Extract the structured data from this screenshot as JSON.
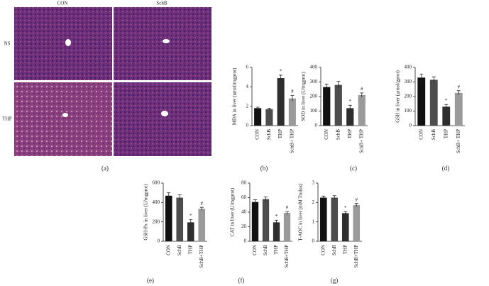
{
  "histology": {
    "columns": [
      "CON",
      "SchB"
    ],
    "rows": [
      "NS",
      "THP"
    ],
    "label": "(a)"
  },
  "chart_data": [
    {
      "type": "bar",
      "panel": "(b)",
      "ylabel": "MDA in liver (nmol/mgprot)",
      "categories": [
        "CON",
        "SchB",
        "THP",
        "SchB+ THP"
      ],
      "values": [
        1.8,
        1.7,
        4.9,
        2.8
      ],
      "errors": [
        0.1,
        0.1,
        0.3,
        0.3
      ],
      "markers": [
        null,
        null,
        "*",
        "#"
      ],
      "colors": [
        "#111111",
        "#4d4d4d",
        "#2e2e2e",
        "#9a9a9a"
      ],
      "ylim": [
        0,
        6
      ],
      "yticks": [
        0,
        2,
        4,
        6
      ]
    },
    {
      "type": "bar",
      "panel": "(c)",
      "ylabel": "SOD in liver (U/mgprot)",
      "categories": [
        "CON",
        "SchB",
        "THP",
        "SchB+ THP"
      ],
      "values": [
        265,
        280,
        120,
        210
      ],
      "errors": [
        20,
        25,
        20,
        15
      ],
      "markers": [
        null,
        null,
        "*",
        "#"
      ],
      "colors": [
        "#111111",
        "#4d4d4d",
        "#2e2e2e",
        "#9a9a9a"
      ],
      "ylim": [
        0,
        400
      ],
      "yticks": [
        0,
        100,
        200,
        300,
        400
      ]
    },
    {
      "type": "bar",
      "panel": "(d)",
      "ylabel": "GSH in liver (μmol/gprot)",
      "categories": [
        "CON",
        "SchB",
        "THP",
        "SchB+ THP"
      ],
      "values": [
        330,
        315,
        130,
        225
      ],
      "errors": [
        25,
        20,
        15,
        15
      ],
      "markers": [
        null,
        null,
        "*",
        "#"
      ],
      "colors": [
        "#111111",
        "#4d4d4d",
        "#2e2e2e",
        "#9a9a9a"
      ],
      "ylim": [
        0,
        400
      ],
      "yticks": [
        0,
        100,
        200,
        300,
        400
      ]
    },
    {
      "type": "bar",
      "panel": "(e)",
      "ylabel": "GSH-Px in liver (U/mgprot)",
      "categories": [
        "CON",
        "SchB",
        "THP",
        "SchB+THP"
      ],
      "values": [
        470,
        450,
        195,
        335
      ],
      "errors": [
        30,
        30,
        30,
        15
      ],
      "markers": [
        null,
        null,
        "*",
        "#"
      ],
      "colors": [
        "#111111",
        "#4d4d4d",
        "#2e2e2e",
        "#9a9a9a"
      ],
      "ylim": [
        0,
        600
      ],
      "yticks": [
        0,
        200,
        400,
        600
      ]
    },
    {
      "type": "bar",
      "panel": "(f)",
      "ylabel": "CAT in liver (U/mgprot)",
      "categories": [
        "CON",
        "SchB",
        "THP",
        "SchB+THP"
      ],
      "values": [
        54,
        58,
        26,
        39
      ],
      "errors": [
        3,
        3,
        3,
        2
      ],
      "markers": [
        null,
        null,
        "*",
        "#"
      ],
      "colors": [
        "#111111",
        "#4d4d4d",
        "#2e2e2e",
        "#9a9a9a"
      ],
      "ylim": [
        0,
        80
      ],
      "yticks": [
        0,
        20,
        40,
        60,
        80
      ]
    },
    {
      "type": "bar",
      "panel": "(g)",
      "ylabel": "T-AOC in liver (mM Trolox)",
      "categories": [
        "CON",
        "SchB",
        "THP",
        "SchB+THP"
      ],
      "values": [
        2.25,
        2.25,
        1.45,
        1.87
      ],
      "errors": [
        0.08,
        0.1,
        0.08,
        0.08
      ],
      "markers": [
        null,
        null,
        "*",
        "#"
      ],
      "colors": [
        "#111111",
        "#4d4d4d",
        "#2e2e2e",
        "#9a9a9a"
      ],
      "ylim": [
        0,
        3
      ],
      "yticks": [
        0,
        1,
        2,
        3
      ]
    }
  ]
}
